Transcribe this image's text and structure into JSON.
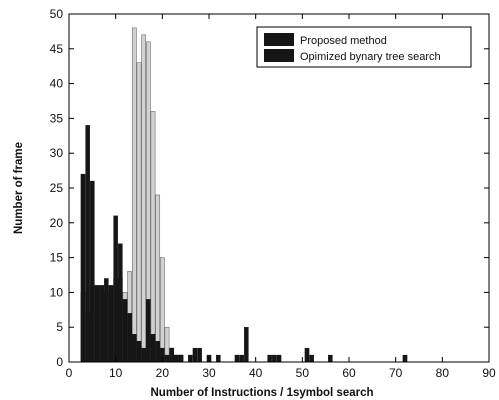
{
  "chart_data": {
    "type": "bar",
    "title": "",
    "xlabel": "Number of Instructions /  1symbol search",
    "ylabel": "Number of frame",
    "xlim": [
      0,
      90
    ],
    "ylim": [
      0,
      50
    ],
    "xticks": [
      0,
      10,
      20,
      30,
      40,
      50,
      60,
      70,
      80,
      90
    ],
    "yticks": [
      0,
      5,
      10,
      15,
      20,
      25,
      30,
      35,
      40,
      45,
      50
    ],
    "grid": false,
    "legend_position": "top-right",
    "series": [
      {
        "name": "Proposed  method",
        "color": "#161616",
        "points": [
          {
            "x": 3,
            "y": 27
          },
          {
            "x": 4,
            "y": 34
          },
          {
            "x": 5,
            "y": 26
          },
          {
            "x": 6,
            "y": 11
          },
          {
            "x": 7,
            "y": 11
          },
          {
            "x": 8,
            "y": 12
          },
          {
            "x": 9,
            "y": 11
          },
          {
            "x": 10,
            "y": 21
          },
          {
            "x": 11,
            "y": 17
          },
          {
            "x": 12,
            "y": 9
          },
          {
            "x": 13,
            "y": 7
          },
          {
            "x": 14,
            "y": 4
          },
          {
            "x": 15,
            "y": 3
          },
          {
            "x": 16,
            "y": 2
          },
          {
            "x": 17,
            "y": 9
          },
          {
            "x": 18,
            "y": 4
          },
          {
            "x": 19,
            "y": 3
          },
          {
            "x": 20,
            "y": 2
          },
          {
            "x": 21,
            "y": 1
          },
          {
            "x": 22,
            "y": 2
          },
          {
            "x": 23,
            "y": 1
          },
          {
            "x": 24,
            "y": 1
          },
          {
            "x": 26,
            "y": 1
          },
          {
            "x": 27,
            "y": 2
          },
          {
            "x": 28,
            "y": 2
          },
          {
            "x": 30,
            "y": 1
          },
          {
            "x": 32,
            "y": 1
          },
          {
            "x": 36,
            "y": 1
          },
          {
            "x": 37,
            "y": 1
          },
          {
            "x": 38,
            "y": 5
          },
          {
            "x": 43,
            "y": 1
          },
          {
            "x": 44,
            "y": 1
          },
          {
            "x": 45,
            "y": 1
          },
          {
            "x": 51,
            "y": 2
          },
          {
            "x": 52,
            "y": 1
          },
          {
            "x": 56,
            "y": 1
          },
          {
            "x": 72,
            "y": 1
          }
        ]
      },
      {
        "name": "Opimized bynary tree search",
        "color": "#d2d2d2",
        "points": [
          {
            "x": 3,
            "y": 10
          },
          {
            "x": 4,
            "y": 7
          },
          {
            "x": 5,
            "y": 11
          },
          {
            "x": 6,
            "y": 11
          },
          {
            "x": 7,
            "y": 11
          },
          {
            "x": 8,
            "y": 10
          },
          {
            "x": 9,
            "y": 11
          },
          {
            "x": 10,
            "y": 12
          },
          {
            "x": 11,
            "y": 12
          },
          {
            "x": 12,
            "y": 10
          },
          {
            "x": 13,
            "y": 13
          },
          {
            "x": 14,
            "y": 48
          },
          {
            "x": 15,
            "y": 43
          },
          {
            "x": 16,
            "y": 47
          },
          {
            "x": 17,
            "y": 46
          },
          {
            "x": 18,
            "y": 36
          },
          {
            "x": 19,
            "y": 24
          },
          {
            "x": 20,
            "y": 15
          },
          {
            "x": 21,
            "y": 5
          },
          {
            "x": 22,
            "y": 2
          },
          {
            "x": 23,
            "y": 1
          },
          {
            "x": 24,
            "y": 1
          }
        ]
      }
    ]
  }
}
